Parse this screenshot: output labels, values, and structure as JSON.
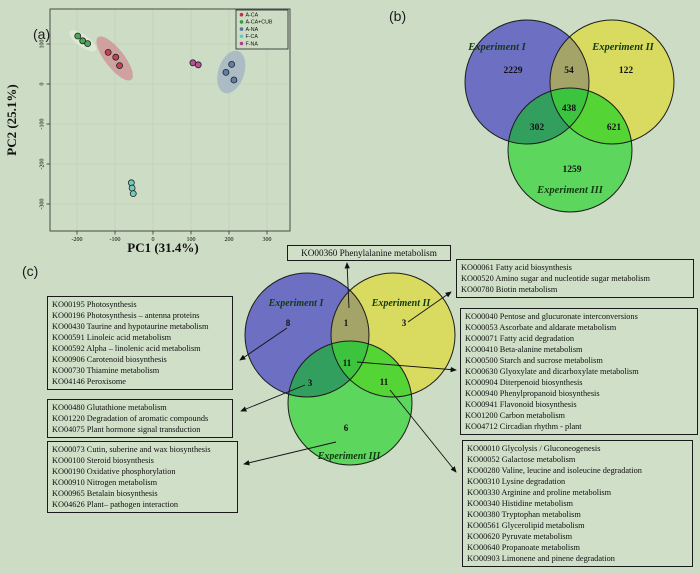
{
  "panel_labels": {
    "a": "(a)",
    "b": "(b)",
    "c": "(c)"
  },
  "palette": {
    "background": "#cdddc5",
    "box_background": "#cfdfc8",
    "arrow_color": "#111111",
    "venn_label_color": "#123a12"
  },
  "chart_data": [
    {
      "type": "scatter",
      "panel": "a",
      "title": "",
      "xlabel": "PC1 (31.4%)",
      "ylabel": "PC2 (25.1%)",
      "xlim": [
        -270,
        330
      ],
      "ylim": [
        -360,
        180
      ],
      "x_ticks": [
        -200,
        -100,
        0,
        100,
        200,
        300
      ],
      "y_ticks": [
        100,
        0,
        -100,
        -200,
        -300
      ],
      "grid": "on",
      "legend_position": "top-right",
      "series": [
        {
          "name": "A-CA",
          "color": "#c03240",
          "points": [
            [
              -118,
              79
            ],
            [
              -98,
              67
            ],
            [
              -88,
              46
            ]
          ]
        },
        {
          "name": "A-CA+CUB",
          "color": "#2f9e41",
          "points": [
            [
              -198,
              120
            ],
            [
              -185,
              108
            ],
            [
              -172,
              101
            ]
          ]
        },
        {
          "name": "A-NA",
          "color": "#54739e",
          "points": [
            [
              207,
              49
            ],
            [
              192,
              29
            ],
            [
              213,
              10
            ]
          ]
        },
        {
          "name": "F-CA",
          "color": "#63c9b8",
          "points": [
            [
              -57,
              -247
            ],
            [
              -55,
              -260
            ],
            [
              -52,
              -274
            ]
          ]
        },
        {
          "name": "F-NA",
          "color": "#b23a8e",
          "points": [
            [
              105,
              53
            ],
            [
              119,
              48
            ]
          ]
        }
      ],
      "ellipses": [
        {
          "cx": -101,
          "cy": 64,
          "rx": 27,
          "ry": 9.5,
          "angle": 52,
          "color": "#cf8d94",
          "opacity": 0.75
        },
        {
          "cx": 206,
          "cy": 30,
          "rx": 13,
          "ry": 22,
          "angle": 18,
          "color": "#a3b4c4",
          "opacity": 0.8
        },
        {
          "cx": -185,
          "cy": 108,
          "rx": 16,
          "ry": 6,
          "angle": 36,
          "color": "#dfead6",
          "opacity": 0.9
        }
      ]
    },
    {
      "type": "venn",
      "panel": "b",
      "sets": [
        "Experiment I",
        "Experiment II",
        "Experiment III"
      ],
      "colors": {
        "I": "#6d6fc3",
        "II": "#d9db60",
        "III": "#5cd65c",
        "I_II": "#a5a468",
        "I_III": "#339f5e",
        "II_III": "#55d435",
        "center": "#3cc43f"
      },
      "regions": {
        "I_only": 2229,
        "I_II": 54,
        "II_only": 122,
        "center": 438,
        "I_III": 302,
        "II_III": 621,
        "III_only": 1259
      }
    },
    {
      "type": "venn",
      "panel": "c",
      "sets": [
        "Experiment I",
        "Experiment II",
        "Experiment III"
      ],
      "colors": {
        "I": "#6d6fc3",
        "II": "#d9db60",
        "III": "#5cd65c",
        "I_II": "#a5a468",
        "I_III": "#339f5e",
        "II_III": "#55d435",
        "center": "#3cc43f"
      },
      "regions": {
        "I_only": 8,
        "I_II": 1,
        "II_only": 3,
        "center": 11,
        "I_III": 3,
        "II_III": 11,
        "III_only": 6
      }
    }
  ],
  "pathway_boxes": {
    "top": {
      "items": [
        "KO00360 Phenylalanine metabolism"
      ]
    },
    "exp1_only": {
      "items": [
        "KO00195 Photosynthesis",
        "KO00196 Photosynthesis – antenna proteins",
        "KO00430 Taurine and hypotaurine metabolism",
        "KO00591 Linoleic acid metabolism",
        "KO00592 Alpha – linolenic acid metabolism",
        "KO00906 Carotenoid biosynthesis",
        "KO00730 Thiamine metabolism",
        "KO04146 Peroxisome"
      ]
    },
    "i_iii": {
      "items": [
        "KO00480 Glutathione metabolism",
        "KO01220 Degradation of aromatic compounds",
        "KO04075 Plant hormone signal transduction"
      ]
    },
    "exp3_only": {
      "items": [
        "KO00073 Cutin, suberine and wax biosynthesis",
        "KO00100 Steroid biosynthesis",
        "KO00190 Oxidative phosphorylation",
        "KO00910 Nitrogen metabolism",
        "KO00965 Betalain biosynthesis",
        "KO04626 Plant– pathogen interaction"
      ]
    },
    "exp2_only": {
      "items": [
        "KO00061 Fatty acid biosynthesis",
        "KO00520 Amino sugar and nucleotide sugar metabolism",
        "KO00780 Biotin metabolism"
      ]
    },
    "center": {
      "items": [
        "KO00040 Pentose and glucuronate interconversions",
        "KO00053 Ascorbate and aldarate metabolism",
        "KO00071 Fatty acid degradation",
        "KO00410 Beta-alanine metabolism",
        "KO00500 Starch and sucrose metabolism",
        "KO00630 Glyoxylate and dicarboxylate metabolism",
        "KO00904 Diterpenoid biosynthesis",
        "KO00940 Phenylpropanoid biosynthesis",
        "KO00941 Flavonoid biosynthesis",
        "KO01200 Carbon metabolism",
        "KO04712 Circadian rhythm - plant"
      ]
    },
    "ii_iii": {
      "items": [
        "KO00010 Glycolysis / Gluconeogenesis",
        "KO00052 Galactose metabolism",
        "KO00280 Valine, leucine and isoleucine degradation",
        "KO00310 Lysine degradation",
        "KO00330 Arginine and proline metabolism",
        "KO00340 Histidine metabolism",
        "KO00380 Tryptophan metabolism",
        "KO00561 Glycerolipid metabolism",
        "KO00620 Pyruvate metabolism",
        "KO00640 Propanoate metabolism",
        "KO00903 Limonene and pinene degradation"
      ]
    }
  }
}
